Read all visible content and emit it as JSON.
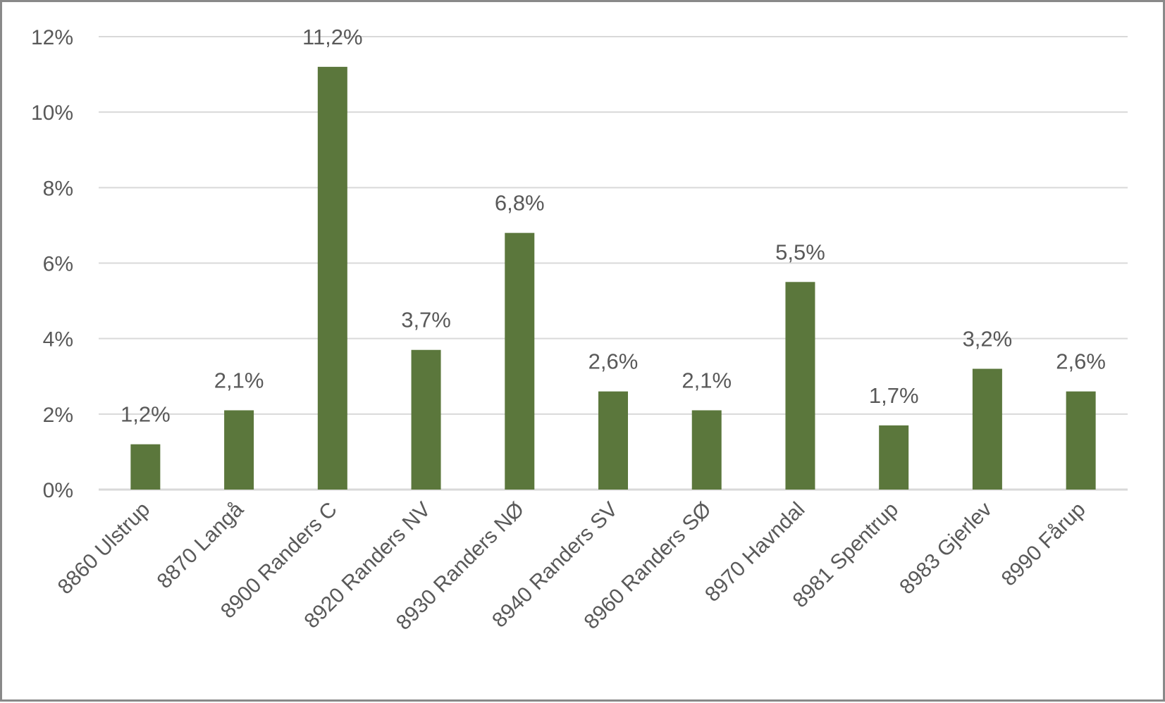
{
  "chart_data": {
    "type": "bar",
    "title": "",
    "xlabel": "",
    "ylabel": "",
    "categories": [
      "8860 Ulstrup",
      "8870 Langå",
      "8900 Randers C",
      "8920 Randers NV",
      "8930 Randers NØ",
      "8940 Randers SV",
      "8960 Randers SØ",
      "8970 Havndal",
      "8981 Spentrup",
      "8983 Gjerlev",
      "8990 Fårup"
    ],
    "values": [
      1.2,
      2.1,
      11.2,
      3.7,
      6.8,
      2.6,
      2.1,
      5.5,
      1.7,
      3.2,
      2.6
    ],
    "data_labels": [
      "1,2%",
      "2,1%",
      "11,2%",
      "3,7%",
      "6,8%",
      "2,6%",
      "2,1%",
      "5,5%",
      "1,7%",
      "3,2%",
      "2,6%"
    ],
    "yticks": [
      0,
      2,
      4,
      6,
      8,
      10,
      12
    ],
    "ytick_labels": [
      "0%",
      "2%",
      "4%",
      "6%",
      "8%",
      "10%",
      "12%"
    ],
    "ylim": [
      0,
      12
    ],
    "grid": true,
    "legend": "none",
    "bar_color": "#5b773c",
    "grid_color": "#d9d9d9"
  }
}
